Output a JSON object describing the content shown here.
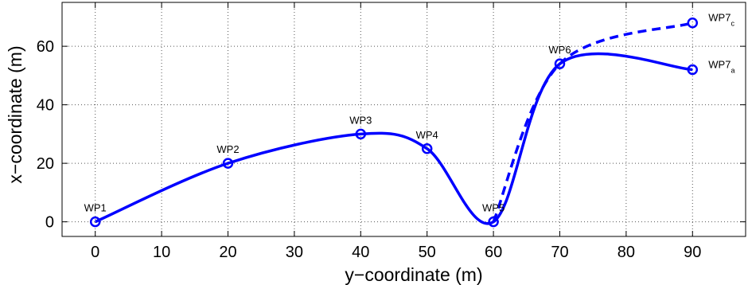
{
  "chart_data": {
    "type": "line",
    "xlabel": "y−coordinate (m)",
    "ylabel": "x−coordinate (m)",
    "xlim": [
      -5,
      98
    ],
    "ylim": [
      -5,
      75
    ],
    "xticks": [
      "0",
      "10",
      "20",
      "30",
      "40",
      "50",
      "60",
      "70",
      "80",
      "90"
    ],
    "yticks": [
      "0",
      "20",
      "40",
      "60"
    ],
    "grid": true,
    "series": [
      {
        "style": "solid",
        "color": "#0000ff",
        "points": [
          [
            0,
            0
          ],
          [
            20,
            20
          ],
          [
            40,
            30
          ],
          [
            50,
            25
          ],
          [
            60,
            0
          ],
          [
            70,
            54
          ],
          [
            90,
            52
          ]
        ]
      },
      {
        "style": "dashed",
        "color": "#0000ff",
        "points": [
          [
            60,
            0
          ],
          [
            70,
            54
          ],
          [
            90,
            68
          ]
        ]
      }
    ],
    "waypoints": [
      {
        "label": "WP1",
        "x": 0,
        "y": 0
      },
      {
        "label": "WP2",
        "x": 20,
        "y": 20
      },
      {
        "label": "WP3",
        "x": 40,
        "y": 30
      },
      {
        "label": "WP4",
        "x": 50,
        "y": 25
      },
      {
        "label": "WP5",
        "x": 60,
        "y": 0
      },
      {
        "label": "WP6",
        "x": 70,
        "y": 54
      },
      {
        "label": "WP7",
        "sub": "c",
        "x": 90,
        "y": 68
      },
      {
        "label": "WP7",
        "sub": "a",
        "x": 90,
        "y": 52
      }
    ]
  }
}
